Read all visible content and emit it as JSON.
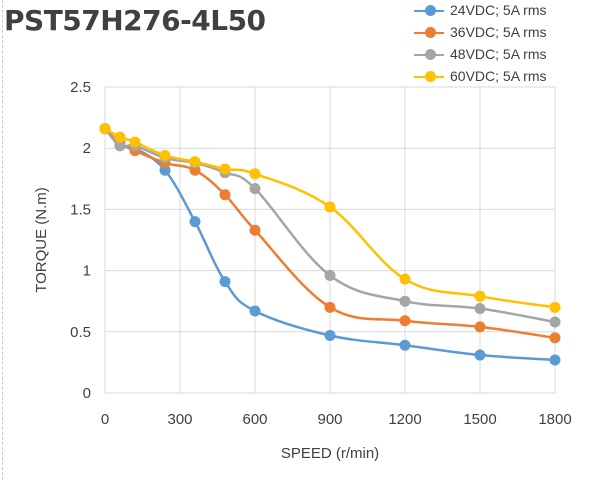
{
  "chart_data": {
    "type": "line",
    "title": "PST57H276-4L50",
    "xlabel": "SPEED (r/min)",
    "ylabel": "TORQUE (N.m)",
    "xlim": [
      0,
      1800
    ],
    "ylim": [
      0,
      2.5
    ],
    "x_ticks": [
      "0",
      "300",
      "600",
      "900",
      "1200",
      "1500",
      "1800"
    ],
    "y_ticks": [
      "0",
      "0.5",
      "1",
      "1.5",
      "2",
      "2.5"
    ],
    "grid": true,
    "legend_position": "top-right",
    "series": [
      {
        "name": "24VDC; 5A rms",
        "color": "#5b9bd5",
        "x": [
          0,
          60,
          120,
          240,
          360,
          480,
          600,
          900,
          1200,
          1500,
          1800
        ],
        "y": [
          2.16,
          2.02,
          2.0,
          1.82,
          1.4,
          0.91,
          0.67,
          0.47,
          0.39,
          0.31,
          0.27
        ]
      },
      {
        "name": "36VDC; 5A rms",
        "color": "#ed7d31",
        "x": [
          0,
          60,
          120,
          240,
          360,
          480,
          600,
          900,
          1200,
          1500,
          1800
        ],
        "y": [
          2.16,
          2.04,
          1.98,
          1.88,
          1.82,
          1.62,
          1.33,
          0.7,
          0.59,
          0.54,
          0.45
        ]
      },
      {
        "name": "48VDC; 5A rms",
        "color": "#a5a5a5",
        "x": [
          0,
          60,
          120,
          240,
          360,
          480,
          600,
          900,
          1200,
          1500,
          1800
        ],
        "y": [
          2.16,
          2.02,
          2.02,
          1.92,
          1.88,
          1.8,
          1.67,
          0.96,
          0.75,
          0.69,
          0.58
        ]
      },
      {
        "name": "60VDC; 5A rms",
        "color": "#ffc000",
        "x": [
          0,
          60,
          120,
          240,
          360,
          480,
          600,
          900,
          1200,
          1500,
          1800
        ],
        "y": [
          2.16,
          2.09,
          2.05,
          1.94,
          1.89,
          1.83,
          1.79,
          1.52,
          0.93,
          0.79,
          0.7
        ]
      }
    ]
  }
}
